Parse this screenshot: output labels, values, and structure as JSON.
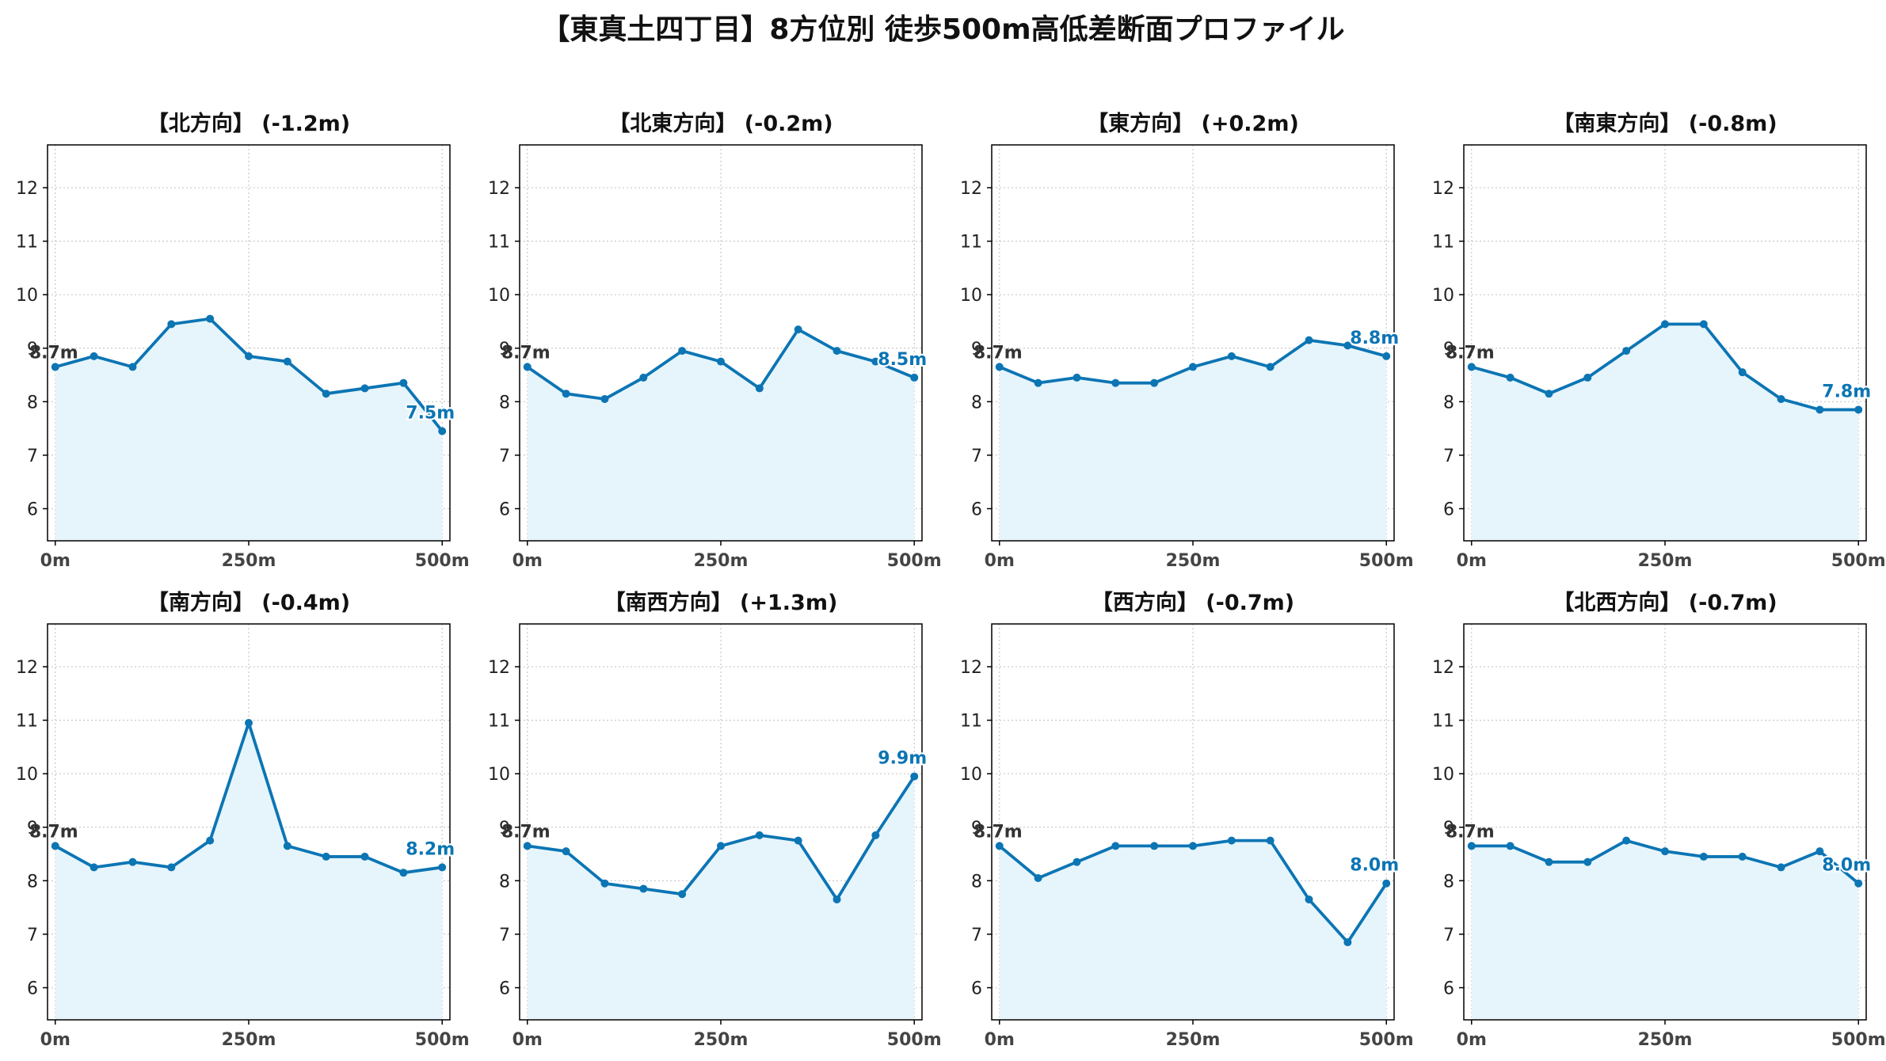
{
  "title": "【東真土四丁目】8方位別 徒歩500m高低差断面プロファイル",
  "colors": {
    "line": "#0c75b4",
    "fill": "#e6f5fb",
    "grid": "#c8c8c8",
    "start_label": "#333333",
    "end_label": "#0c75b4"
  },
  "chart_data": [
    {
      "type": "line",
      "title": "【北方向】 (-1.2m)",
      "start_label": "8.7m",
      "end_label": "7.5m",
      "x": [
        0,
        50,
        100,
        150,
        200,
        250,
        300,
        350,
        400,
        450,
        500
      ],
      "values": [
        8.65,
        8.85,
        8.65,
        9.45,
        9.55,
        8.85,
        8.75,
        8.15,
        8.25,
        8.35,
        7.45
      ],
      "xticks": [
        "0m",
        "250m",
        "500m"
      ],
      "yticks": [
        6,
        7,
        8,
        9,
        10,
        11,
        12
      ],
      "ylim": [
        5.4,
        12.8
      ],
      "xlim": [
        -10,
        510
      ],
      "grid": true
    },
    {
      "type": "line",
      "title": "【北東方向】 (-0.2m)",
      "start_label": "8.7m",
      "end_label": "8.5m",
      "x": [
        0,
        50,
        100,
        150,
        200,
        250,
        300,
        350,
        400,
        450,
        500
      ],
      "values": [
        8.65,
        8.15,
        8.05,
        8.45,
        8.95,
        8.75,
        8.25,
        9.35,
        8.95,
        8.75,
        8.45
      ],
      "xticks": [
        "0m",
        "250m",
        "500m"
      ],
      "yticks": [
        6,
        7,
        8,
        9,
        10,
        11,
        12
      ],
      "ylim": [
        5.4,
        12.8
      ],
      "xlim": [
        -10,
        510
      ],
      "grid": true
    },
    {
      "type": "line",
      "title": "【東方向】 (+0.2m)",
      "start_label": "8.7m",
      "end_label": "8.8m",
      "x": [
        0,
        50,
        100,
        150,
        200,
        250,
        300,
        350,
        400,
        450,
        500
      ],
      "values": [
        8.65,
        8.35,
        8.45,
        8.35,
        8.35,
        8.65,
        8.85,
        8.65,
        9.15,
        9.05,
        8.85
      ],
      "xticks": [
        "0m",
        "250m",
        "500m"
      ],
      "yticks": [
        6,
        7,
        8,
        9,
        10,
        11,
        12
      ],
      "ylim": [
        5.4,
        12.8
      ],
      "xlim": [
        -10,
        510
      ],
      "grid": true
    },
    {
      "type": "line",
      "title": "【南東方向】 (-0.8m)",
      "start_label": "8.7m",
      "end_label": "7.8m",
      "x": [
        0,
        50,
        100,
        150,
        200,
        250,
        300,
        350,
        400,
        450,
        500
      ],
      "values": [
        8.65,
        8.45,
        8.15,
        8.45,
        8.95,
        9.45,
        9.45,
        8.55,
        8.05,
        7.85,
        7.85
      ],
      "xticks": [
        "0m",
        "250m",
        "500m"
      ],
      "yticks": [
        6,
        7,
        8,
        9,
        10,
        11,
        12
      ],
      "ylim": [
        5.4,
        12.8
      ],
      "xlim": [
        -10,
        510
      ],
      "grid": true
    },
    {
      "type": "line",
      "title": "【南方向】 (-0.4m)",
      "start_label": "8.7m",
      "end_label": "8.2m",
      "x": [
        0,
        50,
        100,
        150,
        200,
        250,
        300,
        350,
        400,
        450,
        500
      ],
      "values": [
        8.65,
        8.25,
        8.35,
        8.25,
        8.75,
        10.95,
        8.65,
        8.45,
        8.45,
        8.15,
        8.25
      ],
      "xticks": [
        "0m",
        "250m",
        "500m"
      ],
      "yticks": [
        6,
        7,
        8,
        9,
        10,
        11,
        12
      ],
      "ylim": [
        5.4,
        12.8
      ],
      "xlim": [
        -10,
        510
      ],
      "grid": true
    },
    {
      "type": "line",
      "title": "【南西方向】 (+1.3m)",
      "start_label": "8.7m",
      "end_label": "9.9m",
      "x": [
        0,
        50,
        100,
        150,
        200,
        250,
        300,
        350,
        400,
        450,
        500
      ],
      "values": [
        8.65,
        8.55,
        7.95,
        7.85,
        7.75,
        8.65,
        8.85,
        8.75,
        7.65,
        8.85,
        9.95
      ],
      "xticks": [
        "0m",
        "250m",
        "500m"
      ],
      "yticks": [
        6,
        7,
        8,
        9,
        10,
        11,
        12
      ],
      "ylim": [
        5.4,
        12.8
      ],
      "xlim": [
        -10,
        510
      ],
      "grid": true
    },
    {
      "type": "line",
      "title": "【西方向】 (-0.7m)",
      "start_label": "8.7m",
      "end_label": "8.0m",
      "x": [
        0,
        50,
        100,
        150,
        200,
        250,
        300,
        350,
        400,
        450,
        500
      ],
      "values": [
        8.65,
        8.05,
        8.35,
        8.65,
        8.65,
        8.65,
        8.75,
        8.75,
        7.65,
        6.85,
        7.95
      ],
      "xticks": [
        "0m",
        "250m",
        "500m"
      ],
      "yticks": [
        6,
        7,
        8,
        9,
        10,
        11,
        12
      ],
      "ylim": [
        5.4,
        12.8
      ],
      "xlim": [
        -10,
        510
      ],
      "grid": true
    },
    {
      "type": "line",
      "title": "【北西方向】 (-0.7m)",
      "start_label": "8.7m",
      "end_label": "8.0m",
      "x": [
        0,
        50,
        100,
        150,
        200,
        250,
        300,
        350,
        400,
        450,
        500
      ],
      "values": [
        8.65,
        8.65,
        8.35,
        8.35,
        8.75,
        8.55,
        8.45,
        8.45,
        8.25,
        8.55,
        7.95
      ],
      "xticks": [
        "0m",
        "250m",
        "500m"
      ],
      "yticks": [
        6,
        7,
        8,
        9,
        10,
        11,
        12
      ],
      "ylim": [
        5.4,
        12.8
      ],
      "xlim": [
        -10,
        510
      ],
      "grid": true
    }
  ]
}
